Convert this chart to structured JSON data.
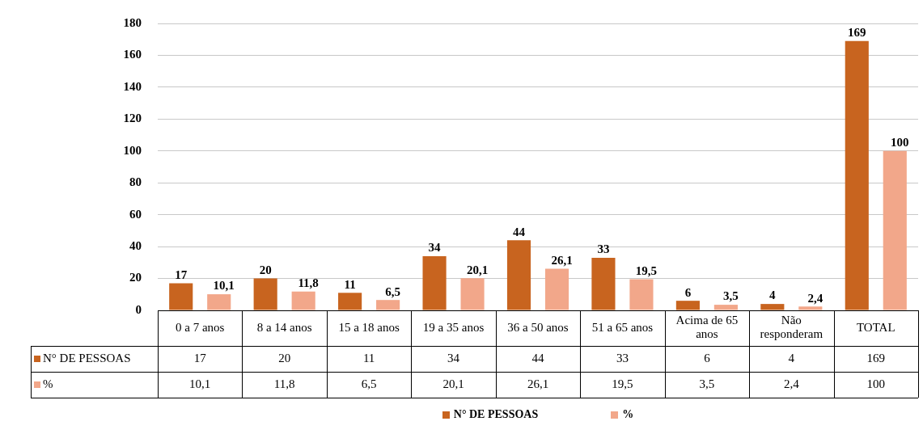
{
  "chart_data": {
    "type": "bar",
    "categories": [
      "0 a 7 anos",
      "8 a 14 anos",
      "15 a 18 anos",
      "19 a 35 anos",
      "36 a 50 anos",
      "51 a 65 anos",
      "Acima de 65 anos",
      "Não responderam",
      "TOTAL"
    ],
    "series": [
      {
        "name": "N° DE PESSOAS",
        "color": "#c8641f",
        "values": [
          17,
          20,
          11,
          34,
          44,
          33,
          6,
          4,
          169
        ],
        "value_labels": [
          "17",
          "20",
          "11",
          "34",
          "44",
          "33",
          "6",
          "4",
          "169"
        ]
      },
      {
        "name": "%",
        "color": "#f2a78a",
        "values": [
          10.1,
          11.8,
          6.5,
          20.1,
          26.1,
          19.5,
          3.5,
          2.4,
          100
        ],
        "value_labels": [
          "10,1",
          "11,8",
          "6,5",
          "20,1",
          "26,1",
          "19,5",
          "3,5",
          "2,4",
          "100"
        ]
      }
    ],
    "ylim": [
      0,
      180
    ],
    "yticks": [
      0,
      20,
      40,
      60,
      80,
      100,
      120,
      140,
      160,
      180
    ],
    "grid": "y",
    "legend": "bottom"
  }
}
